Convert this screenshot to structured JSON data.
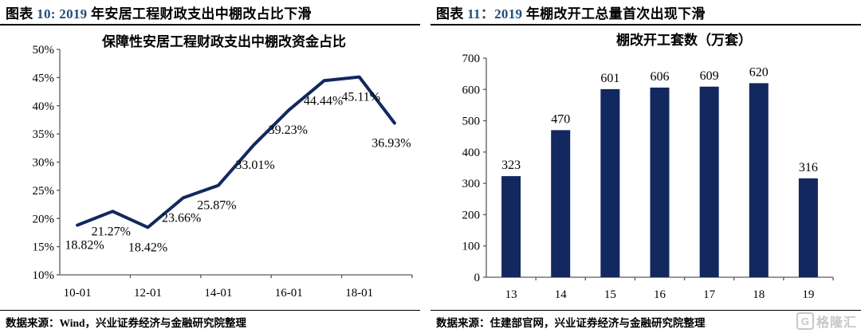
{
  "colors": {
    "series_navy": "#12285E",
    "header_number_blue": "#1F4E79",
    "axis_gray": "#5a5a5a",
    "watermark_gray": "#C8C8C8"
  },
  "panels": [
    {
      "header_parts": [
        {
          "text": "图表 ",
          "accent": false
        },
        {
          "text": "10: 2019",
          "accent": true
        },
        {
          "text": " 年安居工程财政支出中棚改占比下滑",
          "accent": false
        }
      ],
      "source": "数据来源：Wind，兴业证券经济与金融研究院整理"
    },
    {
      "header_parts": [
        {
          "text": "图表 ",
          "accent": false
        },
        {
          "text": "11：2019",
          "accent": true
        },
        {
          "text": " 年棚改开工总量首次出现下滑",
          "accent": false
        }
      ],
      "source": "数据来源：住建部官网，兴业证券经济与金融研究院整理"
    }
  ],
  "chart_data": [
    {
      "type": "line",
      "title": "保障性安居工程财政支出中棚改资金占比",
      "x": [
        "10-01",
        "11-01",
        "12-01",
        "13-01",
        "14-01",
        "15-01",
        "16-01",
        "17-01",
        "18-01",
        "19-01"
      ],
      "values": [
        18.82,
        21.27,
        18.42,
        23.66,
        25.87,
        33.01,
        39.23,
        44.44,
        45.11,
        36.93
      ],
      "point_labels": [
        "18.82%",
        "21.27%",
        "18.42%",
        "23.66%",
        "25.87%",
        "33.01%",
        "39.23%",
        "44.44%",
        "45.11%",
        "36.93%"
      ],
      "x_tick_labels": [
        "10-01",
        "12-01",
        "14-01",
        "16-01",
        "18-01"
      ],
      "ylim": [
        10,
        50
      ],
      "y_step": 5,
      "y_suffix": "%",
      "grid": false,
      "legend": "none",
      "line_color": "#12285E"
    },
    {
      "type": "bar",
      "title": "棚改开工套数（万套）",
      "categories": [
        "13",
        "14",
        "15",
        "16",
        "17",
        "18",
        "19"
      ],
      "values": [
        323,
        470,
        601,
        606,
        609,
        620,
        316
      ],
      "ylim": [
        0,
        700
      ],
      "y_step": 100,
      "grid": false,
      "legend": "none",
      "bar_color": "#12285E"
    }
  ],
  "watermark": {
    "icon": "G",
    "text": "格隆汇"
  }
}
